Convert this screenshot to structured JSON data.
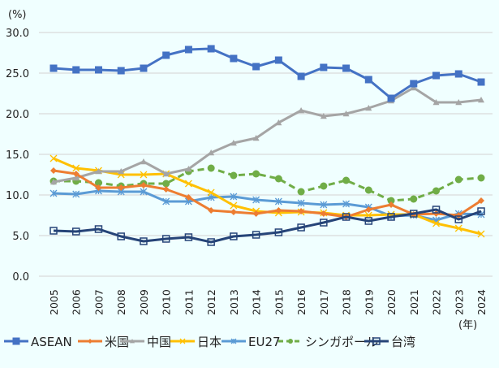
{
  "chart_data": {
    "type": "line",
    "ylabel": "(%)",
    "xlabel": "(年)",
    "ylim": [
      0,
      30
    ],
    "yticks": [
      "0.0",
      "5.0",
      "10.0",
      "15.0",
      "20.0",
      "25.0",
      "30.0"
    ],
    "grid": true,
    "legend_position": "bottom",
    "categories": [
      "2005",
      "2006",
      "2007",
      "2008",
      "2009",
      "2010",
      "2011",
      "2012",
      "2013",
      "2014",
      "2015",
      "2016",
      "2017",
      "2018",
      "2019",
      "2020",
      "2021",
      "2022",
      "2023",
      "2024"
    ],
    "series": [
      {
        "name": "ASEAN",
        "color": "#4472c4",
        "marker": "square",
        "dashed": false,
        "values": [
          25.6,
          25.4,
          25.4,
          25.3,
          25.6,
          27.2,
          27.9,
          28.0,
          26.8,
          25.8,
          26.6,
          24.6,
          25.7,
          25.6,
          24.2,
          21.9,
          23.7,
          24.7,
          24.9,
          23.9
        ]
      },
      {
        "name": "米国",
        "color": "#ed7d31",
        "marker": "diamond",
        "dashed": false,
        "values": [
          13.0,
          12.6,
          10.9,
          10.9,
          11.2,
          10.7,
          9.7,
          8.1,
          7.9,
          7.7,
          8.1,
          8.0,
          7.7,
          7.3,
          8.2,
          8.8,
          7.6,
          7.7,
          7.5,
          9.3
        ]
      },
      {
        "name": "中国",
        "color": "#a5a5a5",
        "marker": "triangle",
        "dashed": false,
        "values": [
          11.6,
          12.1,
          12.9,
          12.9,
          14.1,
          12.6,
          13.2,
          15.2,
          16.4,
          17.0,
          18.9,
          20.4,
          19.7,
          20.0,
          20.7,
          21.6,
          23.2,
          21.4,
          21.4,
          21.7
        ]
      },
      {
        "name": "日本",
        "color": "#ffc000",
        "marker": "x",
        "dashed": false,
        "values": [
          14.5,
          13.3,
          13.0,
          12.5,
          12.5,
          12.6,
          11.4,
          10.3,
          8.7,
          8.0,
          7.8,
          7.9,
          7.8,
          7.5,
          7.5,
          7.6,
          7.6,
          6.5,
          5.9,
          5.2
        ]
      },
      {
        "name": "EU27",
        "color": "#5b9bd5",
        "marker": "asterisk",
        "dashed": false,
        "values": [
          10.2,
          10.1,
          10.5,
          10.4,
          10.4,
          9.2,
          9.2,
          9.7,
          9.8,
          9.4,
          9.2,
          9.0,
          8.8,
          8.9,
          8.5,
          7.4,
          7.5,
          6.9,
          7.7,
          7.6
        ]
      },
      {
        "name": "シンガポール",
        "color": "#70ad47",
        "marker": "circle",
        "dashed": true,
        "values": [
          11.7,
          11.7,
          11.5,
          11.1,
          11.4,
          11.4,
          12.9,
          13.3,
          12.4,
          12.6,
          12.0,
          10.4,
          11.1,
          11.8,
          10.6,
          9.3,
          9.5,
          10.5,
          11.9,
          12.1
        ]
      },
      {
        "name": "台湾",
        "color": "#264478",
        "marker": "open-square",
        "dashed": false,
        "values": [
          5.6,
          5.5,
          5.8,
          4.9,
          4.3,
          4.6,
          4.8,
          4.2,
          4.9,
          5.1,
          5.4,
          6.0,
          6.6,
          7.3,
          6.8,
          7.3,
          7.7,
          8.2,
          7.0,
          8.0
        ]
      }
    ]
  }
}
